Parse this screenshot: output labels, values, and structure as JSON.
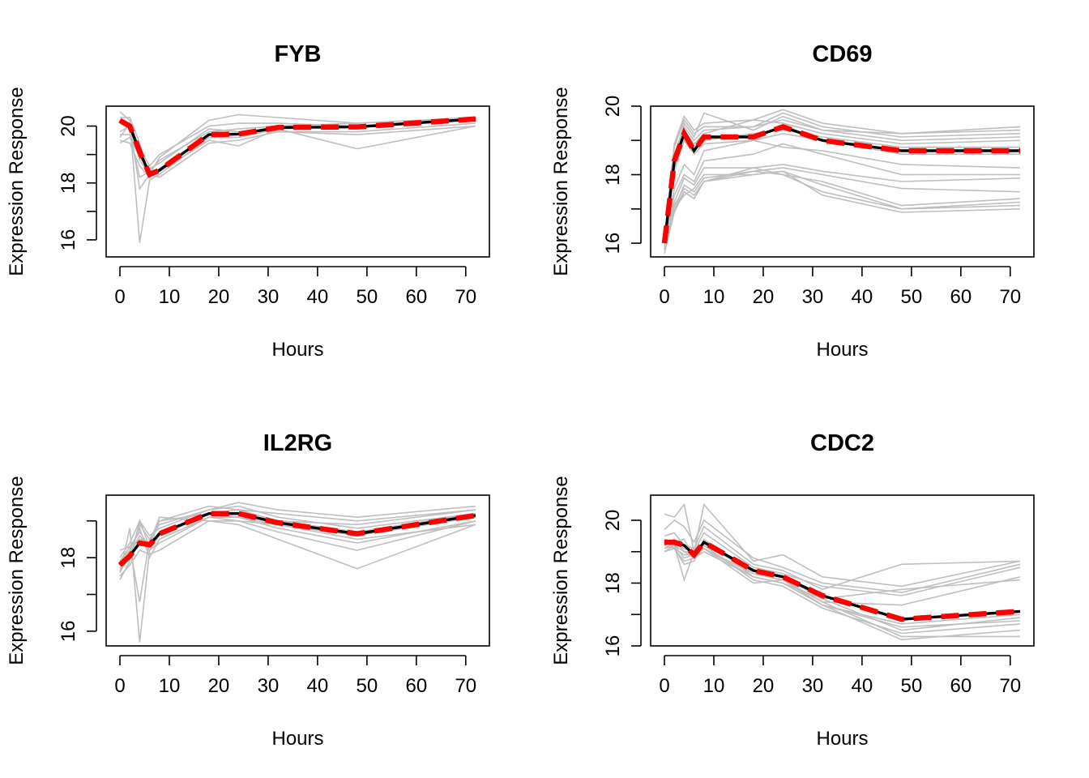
{
  "chart_data": [
    {
      "type": "line",
      "title": "FYB",
      "xlabel": "Hours",
      "ylabel": "Expression Response",
      "xlim": [
        0,
        72
      ],
      "ylim": [
        15.4,
        20.7
      ],
      "xticks": [
        "0",
        "10",
        "20",
        "30",
        "40",
        "50",
        "60",
        "70"
      ],
      "yticks": [
        16,
        17,
        18,
        19,
        20
      ],
      "ytick_labels": [
        "16",
        "",
        "18",
        "",
        "20"
      ],
      "x": [
        0,
        2,
        4,
        6,
        8,
        18,
        24,
        32,
        48,
        72
      ],
      "series": [
        {
          "role": "mean",
          "color": "#000000",
          "values": [
            20.2,
            20.0,
            19.1,
            18.3,
            18.45,
            19.7,
            19.72,
            19.95,
            19.97,
            20.25
          ]
        },
        {
          "role": "fit",
          "color": "#ff0000",
          "values": [
            20.2,
            20.0,
            19.1,
            18.3,
            18.45,
            19.7,
            19.72,
            19.95,
            19.97,
            20.25
          ]
        },
        {
          "role": "sample",
          "color": "#bebebe",
          "values": [
            20.5,
            20.2,
            15.9,
            18.1,
            18.3,
            19.6,
            19.7,
            19.9,
            20.0,
            20.3
          ]
        },
        {
          "role": "sample",
          "color": "#bebebe",
          "values": [
            19.8,
            20.0,
            17.8,
            18.3,
            18.9,
            20.2,
            20.4,
            20.3,
            20.1,
            20.3
          ]
        },
        {
          "role": "sample",
          "color": "#bebebe",
          "values": [
            19.5,
            19.4,
            18.6,
            18.2,
            18.4,
            19.5,
            19.3,
            19.9,
            19.2,
            20.0
          ]
        },
        {
          "role": "sample",
          "color": "#bebebe",
          "values": [
            19.4,
            19.6,
            18.9,
            18.5,
            18.7,
            19.9,
            19.8,
            19.8,
            19.8,
            20.1
          ]
        },
        {
          "role": "sample",
          "color": "#bebebe",
          "values": [
            20.3,
            20.3,
            19.4,
            18.2,
            18.5,
            19.6,
            19.6,
            19.9,
            20.0,
            20.2
          ]
        },
        {
          "role": "sample",
          "color": "#bebebe",
          "values": [
            19.7,
            19.7,
            18.2,
            18.4,
            18.8,
            19.8,
            19.9,
            20.0,
            20.1,
            20.3
          ]
        },
        {
          "role": "sample",
          "color": "#bebebe",
          "values": [
            20.1,
            19.9,
            18.8,
            18.3,
            18.2,
            19.4,
            19.5,
            19.8,
            19.7,
            20.0
          ]
        },
        {
          "role": "sample",
          "color": "#bebebe",
          "values": [
            19.6,
            20.1,
            19.2,
            18.6,
            19.0,
            20.0,
            20.1,
            20.1,
            20.0,
            20.2
          ]
        }
      ]
    },
    {
      "type": "line",
      "title": "CD69",
      "xlabel": "Hours",
      "ylabel": "Expression Response",
      "xlim": [
        0,
        72
      ],
      "ylim": [
        15.6,
        20.0
      ],
      "xticks": [
        "0",
        "10",
        "20",
        "30",
        "40",
        "50",
        "60",
        "70"
      ],
      "yticks": [
        16,
        17,
        18,
        19,
        20
      ],
      "ytick_labels": [
        "16",
        "",
        "18",
        "",
        "20"
      ],
      "x": [
        0,
        2,
        4,
        6,
        8,
        18,
        24,
        32,
        48,
        72
      ],
      "series": [
        {
          "role": "mean",
          "color": "#000000",
          "values": [
            16.0,
            18.4,
            19.2,
            18.7,
            19.1,
            19.1,
            19.4,
            19.0,
            18.7,
            18.7
          ]
        },
        {
          "role": "fit",
          "color": "#ff0000",
          "values": [
            16.0,
            18.4,
            19.2,
            18.7,
            19.1,
            19.1,
            19.4,
            19.0,
            18.7,
            18.7
          ]
        },
        {
          "role": "sample",
          "color": "#bebebe",
          "values": [
            16.1,
            18.9,
            19.7,
            19.3,
            19.5,
            19.6,
            19.9,
            19.5,
            19.2,
            19.4
          ]
        },
        {
          "role": "sample",
          "color": "#bebebe",
          "values": [
            16.2,
            18.6,
            19.4,
            19.0,
            19.3,
            19.4,
            19.8,
            19.4,
            19.1,
            19.2
          ]
        },
        {
          "role": "sample",
          "color": "#bebebe",
          "values": [
            15.8,
            18.5,
            19.5,
            19.1,
            19.8,
            19.3,
            19.7,
            19.3,
            19.2,
            19.3
          ]
        },
        {
          "role": "sample",
          "color": "#bebebe",
          "values": [
            16.0,
            18.2,
            19.3,
            18.9,
            19.2,
            19.6,
            19.5,
            19.2,
            18.9,
            19.0
          ]
        },
        {
          "role": "sample",
          "color": "#bebebe",
          "values": [
            16.1,
            18.8,
            19.6,
            19.2,
            19.4,
            19.4,
            19.6,
            19.3,
            19.0,
            19.1
          ]
        },
        {
          "role": "sample",
          "color": "#bebebe",
          "values": [
            16.0,
            18.3,
            19.1,
            18.7,
            19.0,
            19.2,
            19.3,
            19.1,
            18.8,
            18.8
          ]
        },
        {
          "role": "sample",
          "color": "#bebebe",
          "values": [
            16.1,
            18.1,
            19.0,
            18.6,
            18.9,
            19.0,
            19.2,
            19.0,
            18.6,
            18.6
          ]
        },
        {
          "role": "sample",
          "color": "#bebebe",
          "values": [
            16.0,
            17.6,
            18.3,
            18.0,
            18.7,
            19.0,
            18.8,
            18.7,
            18.3,
            18.2
          ]
        },
        {
          "role": "sample",
          "color": "#bebebe",
          "values": [
            16.0,
            17.4,
            18.0,
            17.8,
            18.4,
            18.6,
            18.9,
            18.6,
            18.0,
            18.0
          ]
        },
        {
          "role": "sample",
          "color": "#bebebe",
          "values": [
            16.0,
            17.2,
            17.9,
            17.7,
            18.2,
            18.2,
            18.3,
            18.1,
            17.8,
            17.9
          ]
        },
        {
          "role": "sample",
          "color": "#bebebe",
          "values": [
            16.0,
            17.0,
            17.7,
            17.5,
            17.9,
            18.1,
            18.2,
            18.0,
            17.6,
            17.5
          ]
        },
        {
          "role": "sample",
          "color": "#bebebe",
          "values": [
            15.7,
            16.9,
            17.5,
            17.3,
            17.8,
            18.2,
            18.0,
            17.8,
            17.1,
            17.3
          ]
        },
        {
          "role": "sample",
          "color": "#bebebe",
          "values": [
            16.0,
            17.0,
            17.4,
            17.6,
            18.0,
            18.0,
            18.1,
            17.7,
            17.0,
            17.2
          ]
        },
        {
          "role": "sample",
          "color": "#bebebe",
          "values": [
            16.0,
            17.1,
            17.6,
            17.4,
            17.8,
            18.1,
            18.0,
            17.5,
            17.0,
            17.1
          ]
        },
        {
          "role": "sample",
          "color": "#bebebe",
          "values": [
            15.9,
            17.0,
            17.5,
            17.3,
            17.8,
            18.0,
            18.1,
            17.4,
            16.9,
            17.0
          ]
        }
      ]
    },
    {
      "type": "line",
      "title": "IL2RG",
      "xlabel": "Hours",
      "ylabel": "Expression Response",
      "xlim": [
        0,
        72
      ],
      "ylim": [
        15.6,
        19.7
      ],
      "xticks": [
        "0",
        "10",
        "20",
        "30",
        "40",
        "50",
        "60",
        "70"
      ],
      "yticks": [
        16,
        17,
        18,
        19
      ],
      "ytick_labels": [
        "16",
        "",
        "18",
        ""
      ],
      "x": [
        0,
        2,
        4,
        6,
        8,
        18,
        24,
        32,
        48,
        72
      ],
      "series": [
        {
          "role": "mean",
          "color": "#000000",
          "values": [
            17.8,
            18.05,
            18.4,
            18.35,
            18.65,
            19.2,
            19.2,
            18.95,
            18.65,
            19.15
          ]
        },
        {
          "role": "fit",
          "color": "#ff0000",
          "values": [
            17.8,
            18.05,
            18.4,
            18.35,
            18.65,
            19.2,
            19.2,
            18.95,
            18.65,
            19.15
          ]
        },
        {
          "role": "sample",
          "color": "#bebebe",
          "values": [
            17.6,
            18.8,
            15.7,
            18.2,
            18.6,
            19.2,
            19.3,
            19.0,
            18.7,
            19.2
          ]
        },
        {
          "role": "sample",
          "color": "#bebebe",
          "values": [
            18.2,
            18.3,
            16.8,
            18.5,
            18.9,
            19.3,
            19.5,
            19.3,
            19.1,
            19.4
          ]
        },
        {
          "role": "sample",
          "color": "#bebebe",
          "values": [
            17.4,
            17.9,
            19.0,
            18.3,
            19.0,
            19.4,
            19.3,
            19.2,
            19.0,
            19.3
          ]
        },
        {
          "role": "sample",
          "color": "#bebebe",
          "values": [
            17.9,
            18.2,
            18.8,
            18.0,
            18.5,
            19.1,
            19.1,
            18.8,
            18.4,
            19.0
          ]
        },
        {
          "role": "sample",
          "color": "#bebebe",
          "values": [
            17.7,
            18.0,
            18.5,
            18.4,
            19.1,
            19.0,
            19.0,
            18.9,
            18.6,
            19.1
          ]
        },
        {
          "role": "sample",
          "color": "#bebebe",
          "values": [
            17.5,
            17.8,
            18.2,
            18.1,
            18.2,
            19.0,
            18.9,
            18.5,
            17.7,
            18.9
          ]
        },
        {
          "role": "sample",
          "color": "#bebebe",
          "values": [
            18.0,
            18.4,
            19.0,
            18.6,
            18.8,
            19.3,
            19.4,
            19.1,
            18.8,
            19.2
          ]
        },
        {
          "role": "sample",
          "color": "#bebebe",
          "values": [
            17.6,
            18.1,
            18.6,
            18.2,
            18.4,
            19.1,
            19.0,
            18.7,
            18.2,
            19.0
          ]
        },
        {
          "role": "sample",
          "color": "#bebebe",
          "values": [
            17.8,
            18.0,
            18.9,
            18.5,
            19.0,
            19.2,
            19.1,
            18.9,
            18.5,
            18.9
          ]
        },
        {
          "role": "sample",
          "color": "#bebebe",
          "values": [
            17.9,
            18.3,
            18.7,
            18.3,
            18.7,
            19.2,
            19.2,
            19.0,
            18.9,
            19.3
          ]
        }
      ]
    },
    {
      "type": "line",
      "title": "CDC2",
      "xlabel": "Hours",
      "ylabel": "Expression Response",
      "xlim": [
        0,
        72
      ],
      "ylim": [
        16.0,
        20.8
      ],
      "xticks": [
        "0",
        "10",
        "20",
        "30",
        "40",
        "50",
        "60",
        "70"
      ],
      "yticks": [
        16,
        17,
        18,
        19,
        20
      ],
      "ytick_labels": [
        "16",
        "",
        "18",
        "",
        "20"
      ],
      "x": [
        0,
        2,
        4,
        6,
        8,
        18,
        24,
        32,
        48,
        72
      ],
      "series": [
        {
          "role": "mean",
          "color": "#000000",
          "values": [
            19.3,
            19.3,
            19.2,
            18.9,
            19.3,
            18.4,
            18.2,
            17.6,
            16.85,
            17.1
          ]
        },
        {
          "role": "fit",
          "color": "#ff0000",
          "values": [
            19.3,
            19.3,
            19.2,
            18.9,
            19.3,
            18.4,
            18.2,
            17.6,
            16.85,
            17.1
          ]
        },
        {
          "role": "sample",
          "color": "#bebebe",
          "values": [
            20.2,
            20.1,
            20.5,
            19.0,
            20.5,
            18.7,
            18.9,
            18.2,
            17.9,
            18.7
          ]
        },
        {
          "role": "sample",
          "color": "#bebebe",
          "values": [
            19.7,
            20.0,
            19.8,
            19.3,
            20.0,
            18.8,
            18.5,
            18.0,
            17.7,
            18.6
          ]
        },
        {
          "role": "sample",
          "color": "#bebebe",
          "values": [
            19.5,
            19.6,
            19.2,
            19.1,
            19.8,
            18.6,
            18.4,
            17.8,
            18.6,
            18.7
          ]
        },
        {
          "role": "sample",
          "color": "#bebebe",
          "values": [
            19.0,
            19.2,
            18.1,
            19.0,
            19.6,
            18.5,
            18.3,
            17.9,
            17.6,
            18.5
          ]
        },
        {
          "role": "sample",
          "color": "#bebebe",
          "values": [
            19.4,
            19.1,
            18.6,
            18.7,
            19.4,
            18.2,
            18.0,
            17.5,
            17.8,
            18.1
          ]
        },
        {
          "role": "sample",
          "color": "#bebebe",
          "values": [
            19.1,
            19.3,
            19.4,
            18.8,
            19.3,
            18.3,
            18.1,
            17.4,
            17.3,
            18.2
          ]
        },
        {
          "role": "sample",
          "color": "#bebebe",
          "values": [
            19.2,
            19.4,
            19.0,
            19.0,
            19.1,
            18.0,
            18.1,
            17.3,
            16.6,
            16.8
          ]
        },
        {
          "role": "sample",
          "color": "#bebebe",
          "values": [
            19.3,
            19.2,
            18.8,
            18.9,
            19.2,
            18.1,
            17.9,
            17.2,
            16.4,
            16.7
          ]
        },
        {
          "role": "sample",
          "color": "#bebebe",
          "values": [
            19.0,
            19.1,
            18.7,
            18.8,
            19.0,
            18.2,
            18.0,
            17.3,
            16.2,
            16.5
          ]
        },
        {
          "role": "sample",
          "color": "#bebebe",
          "values": [
            19.4,
            19.3,
            19.1,
            19.0,
            19.2,
            18.4,
            18.2,
            17.5,
            16.5,
            16.9
          ]
        },
        {
          "role": "sample",
          "color": "#bebebe",
          "values": [
            19.2,
            19.1,
            18.9,
            18.9,
            19.1,
            18.3,
            18.1,
            17.4,
            16.3,
            16.3
          ]
        },
        {
          "role": "sample",
          "color": "#bebebe",
          "values": [
            19.1,
            19.2,
            19.0,
            18.8,
            19.1,
            18.2,
            18.0,
            17.3,
            16.7,
            17.0
          ]
        }
      ]
    }
  ]
}
